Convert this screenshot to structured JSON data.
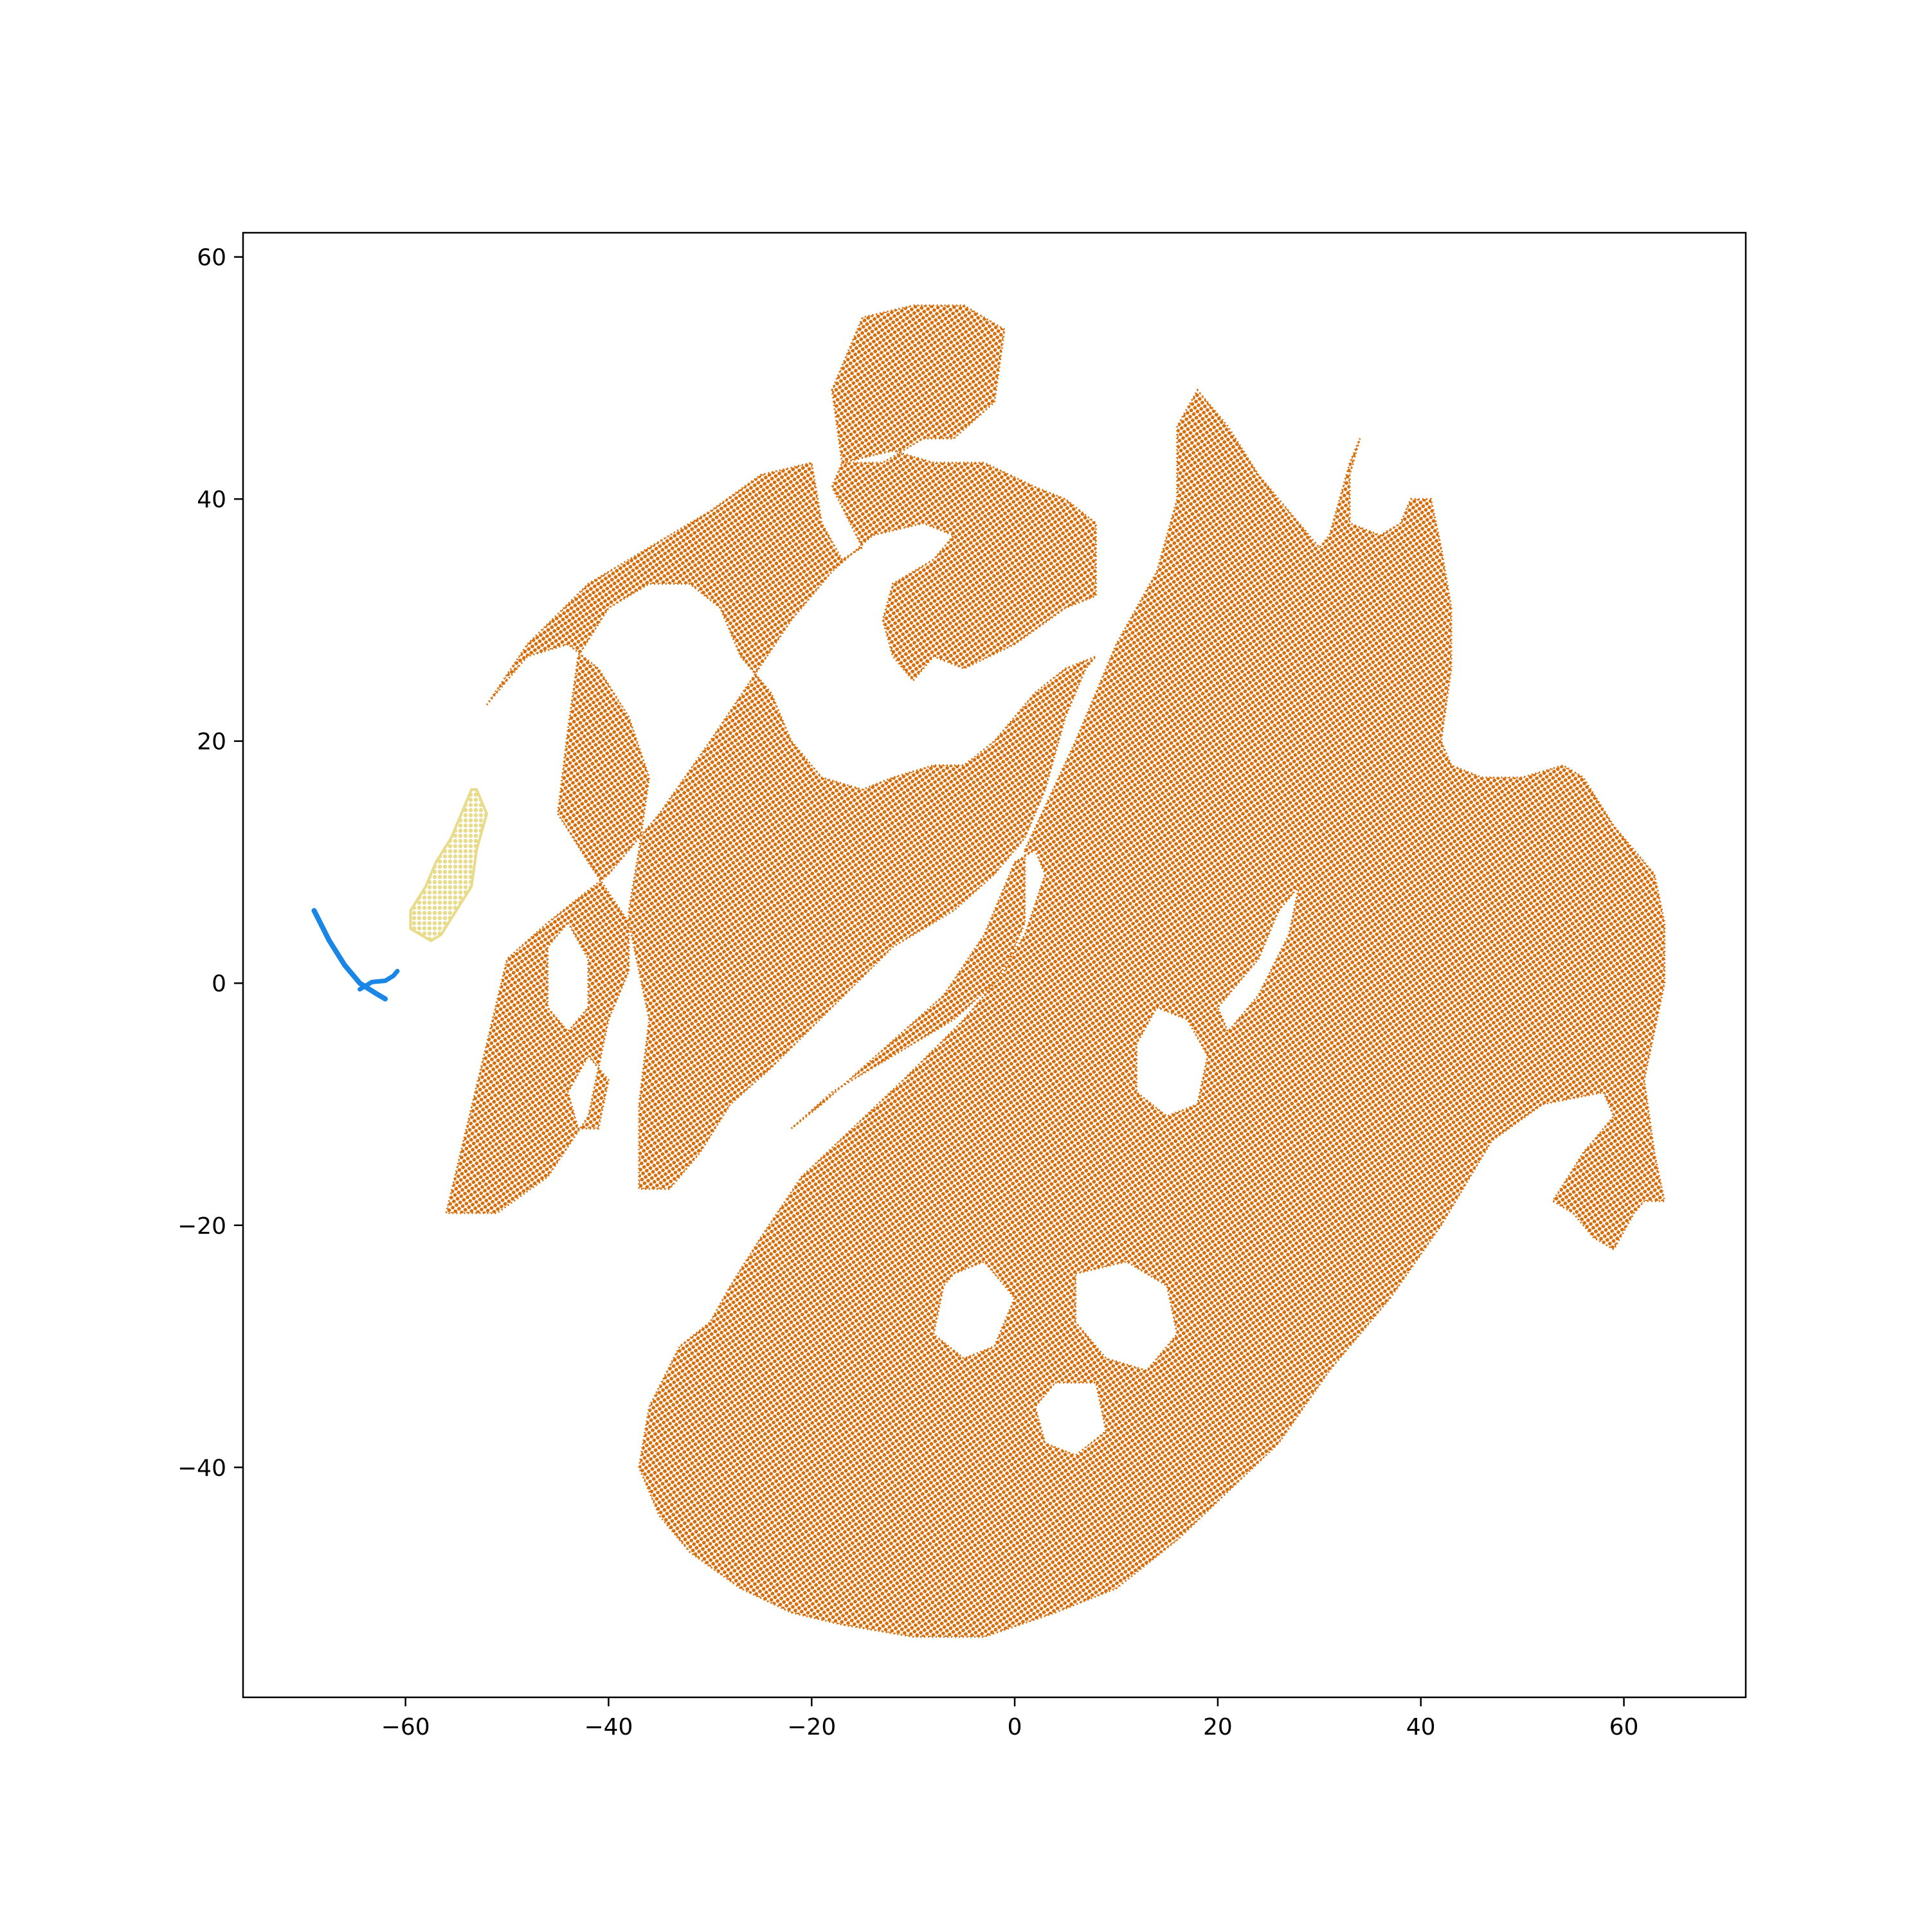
{
  "chart_data": {
    "type": "scatter",
    "title": "",
    "xlabel": "",
    "ylabel": "",
    "xlim": [
      -76,
      72
    ],
    "ylim": [
      -59,
      62
    ],
    "xticks": [
      -60,
      -40,
      -20,
      0,
      20,
      40,
      60
    ],
    "yticks": [
      -40,
      -20,
      0,
      20,
      40,
      60
    ],
    "xtick_labels": [
      "−60",
      "−40",
      "−20",
      "0",
      "20",
      "40",
      "60"
    ],
    "ytick_labels": [
      "−40",
      "−20",
      "0",
      "20",
      "40",
      "60"
    ],
    "grid": false,
    "legend": false,
    "series": [
      {
        "color": "#d56d0a",
        "shape_polygons": [
          [
            [
              -52,
              23
            ],
            [
              -48,
              28
            ],
            [
              -42,
              33
            ],
            [
              -36,
              36
            ],
            [
              -30,
              39
            ],
            [
              -25,
              42
            ],
            [
              -20,
              43
            ],
            [
              -19,
              38
            ],
            [
              -17,
              35
            ],
            [
              -15,
              36
            ],
            [
              -18,
              41
            ],
            [
              -17,
              43
            ],
            [
              -12,
              44
            ],
            [
              -8,
              43
            ],
            [
              -3,
              43
            ],
            [
              2,
              41
            ],
            [
              5,
              40
            ],
            [
              8,
              38
            ],
            [
              8,
              32
            ],
            [
              5,
              31
            ],
            [
              0,
              28
            ],
            [
              -5,
              26
            ],
            [
              -8,
              27
            ],
            [
              -10,
              25
            ],
            [
              -12,
              27
            ],
            [
              -13,
              30
            ],
            [
              -12,
              33
            ],
            [
              -8,
              35
            ],
            [
              -6,
              37
            ],
            [
              -9,
              38
            ],
            [
              -14,
              37
            ],
            [
              -18,
              34
            ],
            [
              -22,
              30
            ],
            [
              -26,
              25
            ],
            [
              -30,
              20
            ],
            [
              -35,
              14
            ],
            [
              -40,
              9
            ],
            [
              -46,
              5
            ],
            [
              -50,
              2
            ],
            [
              -52,
              -5
            ],
            [
              -54,
              -12
            ],
            [
              -56,
              -19
            ],
            [
              -51,
              -19
            ],
            [
              -46,
              -16
            ],
            [
              -42,
              -11
            ],
            [
              -40,
              -3
            ],
            [
              -38,
              1
            ],
            [
              -38,
              6
            ],
            [
              -37,
              11
            ],
            [
              -36,
              17
            ],
            [
              -38,
              22
            ],
            [
              -41,
              26
            ],
            [
              -44,
              28
            ],
            [
              -48,
              27
            ],
            [
              -52,
              23
            ]
          ],
          [
            [
              -45,
              14
            ],
            [
              -42,
              10
            ],
            [
              -38,
              5
            ],
            [
              -36,
              -3
            ],
            [
              -37,
              -10
            ],
            [
              -37,
              -17
            ],
            [
              -34,
              -17
            ],
            [
              -31,
              -14
            ],
            [
              -28,
              -10
            ],
            [
              -24,
              -7
            ],
            [
              -18,
              -2
            ],
            [
              -12,
              3
            ],
            [
              -6,
              6
            ],
            [
              -2,
              9
            ],
            [
              1,
              12
            ],
            [
              3,
              16
            ],
            [
              5,
              22
            ],
            [
              7,
              26
            ],
            [
              8,
              27
            ],
            [
              5,
              26
            ],
            [
              2,
              24
            ],
            [
              -2,
              20
            ],
            [
              -5,
              18
            ],
            [
              -8,
              18
            ],
            [
              -12,
              17
            ],
            [
              -15,
              16
            ],
            [
              -19,
              17
            ],
            [
              -22,
              20
            ],
            [
              -24,
              24
            ],
            [
              -27,
              27
            ],
            [
              -29,
              31
            ],
            [
              -32,
              33
            ],
            [
              -36,
              33
            ],
            [
              -40,
              31
            ],
            [
              -43,
              27
            ],
            [
              -44,
              21
            ],
            [
              -45,
              14
            ]
          ],
          [
            [
              -18,
              49
            ],
            [
              -15,
              55
            ],
            [
              -10,
              56
            ],
            [
              -5,
              56
            ],
            [
              -1,
              54
            ],
            [
              -2,
              48
            ],
            [
              -6,
              45
            ],
            [
              -9,
              45
            ],
            [
              -13,
              43
            ],
            [
              -17,
              43
            ],
            [
              -18,
              49
            ]
          ],
          [
            [
              -22,
              -12
            ],
            [
              -18,
              -9
            ],
            [
              -12,
              -6
            ],
            [
              -6,
              -3
            ],
            [
              -2,
              0
            ],
            [
              1,
              4
            ],
            [
              3,
              9
            ],
            [
              2,
              11
            ],
            [
              0,
              10
            ],
            [
              -3,
              4
            ],
            [
              -7,
              -1
            ],
            [
              -11,
              -4
            ],
            [
              -15,
              -7
            ],
            [
              -19,
              -10
            ],
            [
              -22,
              -12
            ]
          ],
          [
            [
              1,
              11
            ],
            [
              6,
              20
            ],
            [
              10,
              28
            ],
            [
              14,
              34
            ],
            [
              16,
              40
            ],
            [
              16,
              46
            ],
            [
              18,
              49
            ],
            [
              21,
              46
            ],
            [
              24,
              42
            ],
            [
              27,
              39
            ],
            [
              29,
              37
            ],
            [
              30,
              36
            ],
            [
              31,
              37
            ],
            [
              32,
              40
            ],
            [
              33,
              43
            ],
            [
              34,
              45
            ],
            [
              33,
              42
            ],
            [
              33,
              38
            ],
            [
              36,
              37
            ],
            [
              38,
              38
            ],
            [
              39,
              40
            ],
            [
              41,
              40
            ],
            [
              42,
              36
            ],
            [
              43,
              31
            ],
            [
              43,
              26
            ],
            [
              42,
              20
            ],
            [
              43,
              18
            ],
            [
              46,
              17
            ],
            [
              50,
              17
            ],
            [
              54,
              18
            ],
            [
              56,
              17
            ],
            [
              59,
              13
            ],
            [
              61,
              11
            ],
            [
              63,
              9
            ],
            [
              64,
              5
            ],
            [
              64,
              0
            ],
            [
              63,
              -4
            ],
            [
              62,
              -8
            ],
            [
              63,
              -14
            ],
            [
              64,
              -18
            ],
            [
              62,
              -18
            ],
            [
              61,
              -19
            ],
            [
              59,
              -22
            ],
            [
              57,
              -21
            ],
            [
              55,
              -19
            ],
            [
              53,
              -18
            ],
            [
              56,
              -14
            ],
            [
              59,
              -11
            ],
            [
              58,
              -9
            ],
            [
              52,
              -10
            ],
            [
              47,
              -13
            ],
            [
              42,
              -20
            ],
            [
              37,
              -26
            ],
            [
              31,
              -32
            ],
            [
              26,
              -38
            ],
            [
              21,
              -42
            ],
            [
              16,
              -46
            ],
            [
              10,
              -50
            ],
            [
              4,
              -52
            ],
            [
              -3,
              -54
            ],
            [
              -10,
              -54
            ],
            [
              -17,
              -53
            ],
            [
              -22,
              -52
            ],
            [
              -27,
              -50
            ],
            [
              -32,
              -47
            ],
            [
              -35,
              -44
            ],
            [
              -37,
              -40
            ],
            [
              -36,
              -35
            ],
            [
              -33,
              -30
            ],
            [
              -30,
              -28
            ],
            [
              -28,
              -25
            ],
            [
              -25,
              -21
            ],
            [
              -21,
              -16
            ],
            [
              -16,
              -12
            ],
            [
              -11,
              -8
            ],
            [
              -5,
              -3
            ],
            [
              -1,
              1
            ],
            [
              1,
              5
            ],
            [
              1,
              11
            ]
          ]
        ],
        "holes": [
          [
            [
              26,
              6
            ],
            [
              28,
              8
            ],
            [
              27,
              4
            ],
            [
              24,
              -1
            ],
            [
              21,
              -4
            ],
            [
              20,
              -2
            ],
            [
              24,
              2
            ],
            [
              26,
              6
            ]
          ],
          [
            [
              14,
              -2
            ],
            [
              17,
              -3
            ],
            [
              19,
              -6
            ],
            [
              18,
              -10
            ],
            [
              15,
              -11
            ],
            [
              12,
              -9
            ],
            [
              12,
              -5
            ],
            [
              14,
              -2
            ]
          ],
          [
            [
              6,
              -24
            ],
            [
              11,
              -23
            ],
            [
              15,
              -25
            ],
            [
              16,
              -29
            ],
            [
              13,
              -32
            ],
            [
              9,
              -31
            ],
            [
              6,
              -28
            ],
            [
              6,
              -24
            ]
          ],
          [
            [
              -6,
              -24
            ],
            [
              -3,
              -23
            ],
            [
              0,
              -26
            ],
            [
              -2,
              -30
            ],
            [
              -5,
              -31
            ],
            [
              -8,
              -29
            ],
            [
              -7,
              -25
            ],
            [
              -6,
              -24
            ]
          ],
          [
            [
              4,
              -33
            ],
            [
              8,
              -33
            ],
            [
              9,
              -37
            ],
            [
              6,
              -39
            ],
            [
              3,
              -38
            ],
            [
              2,
              -35
            ],
            [
              4,
              -33
            ]
          ],
          [
            [
              -44,
              5
            ],
            [
              -42,
              2
            ],
            [
              -42,
              -2
            ],
            [
              -44,
              -4
            ],
            [
              -46,
              -2
            ],
            [
              -46,
              3
            ],
            [
              -44,
              5
            ]
          ],
          [
            [
              -42,
              -6
            ],
            [
              -40,
              -8
            ],
            [
              -41,
              -12
            ],
            [
              -43,
              -12
            ],
            [
              -44,
              -9
            ],
            [
              -42,
              -6
            ]
          ]
        ]
      },
      {
        "color": "#e8db8a",
        "polygon": [
          [
            -53,
            16
          ],
          [
            -52,
            14
          ],
          [
            -53,
            11
          ],
          [
            -53.5,
            8
          ],
          [
            -55,
            6
          ],
          [
            -56.5,
            4
          ],
          [
            -57.5,
            3.5
          ],
          [
            -59.5,
            4.5
          ],
          [
            -59.5,
            6
          ],
          [
            -58,
            8
          ],
          [
            -57,
            10
          ],
          [
            -55.5,
            12
          ],
          [
            -54.5,
            14
          ],
          [
            -53.5,
            16
          ]
        ]
      },
      {
        "color": "#1a86e6",
        "curve": [
          [
            -69,
            6
          ],
          [
            -67.5,
            3.5
          ],
          [
            -66,
            1.5
          ],
          [
            -64.5,
            0
          ],
          [
            -63,
            -0.8
          ],
          [
            -62,
            -1.3
          ]
        ],
        "curve2": [
          [
            -64.5,
            -0.5
          ],
          [
            -63.3,
            0.1
          ],
          [
            -62,
            0.2
          ],
          [
            -61.2,
            0.6
          ],
          [
            -60.8,
            1
          ]
        ]
      }
    ]
  }
}
